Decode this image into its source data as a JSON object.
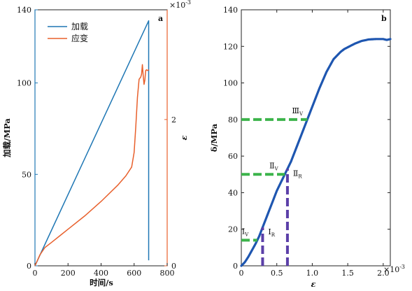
{
  "chart_data": [
    {
      "panel": "a",
      "type": "line",
      "xlabel": "时间/s",
      "ylabel_left": "加载/MPa",
      "ylabel_right": "ε",
      "right_axis_multiplier": "×10^-3",
      "xlim": [
        0,
        800
      ],
      "ylim_left": [
        0,
        140
      ],
      "ylim_right": [
        0,
        3.5
      ],
      "x_ticks": [
        0,
        200,
        400,
        600,
        800
      ],
      "y_ticks_left": [
        0,
        50,
        100,
        140
      ],
      "y_ticks_right": [
        0,
        2
      ],
      "legend": {
        "position": "top-left",
        "entries": [
          "加载",
          "应变"
        ]
      },
      "series": [
        {
          "name": "加载",
          "axis": "left",
          "color": "#1f77b4",
          "x": [
            0,
            688,
            688
          ],
          "y": [
            0,
            134,
            3
          ]
        },
        {
          "name": "应变",
          "axis": "right",
          "color": "#e8602c",
          "x": [
            0,
            30,
            60,
            100,
            150,
            200,
            300,
            400,
            500,
            550,
            585,
            600,
            610,
            620,
            630,
            640,
            645,
            650,
            655,
            660,
            665,
            670,
            675,
            680,
            690
          ],
          "y": [
            0,
            0.15,
            0.25,
            0.32,
            0.41,
            0.5,
            0.68,
            0.88,
            1.1,
            1.23,
            1.35,
            1.55,
            1.9,
            2.3,
            2.55,
            2.58,
            2.62,
            2.75,
            2.6,
            2.48,
            2.54,
            2.67,
            2.68,
            2.67,
            2.68
          ]
        }
      ],
      "annotations": [
        "a"
      ]
    },
    {
      "panel": "b",
      "type": "line",
      "xlabel": "ε",
      "ylabel": "δ/MPa",
      "x_multiplier": "×10^-3",
      "xlim": [
        0,
        2.1
      ],
      "ylim": [
        0,
        140
      ],
      "x_ticks": [
        0,
        0.5,
        1.0,
        1.5,
        2.0
      ],
      "x_tick_labels": [
        "0",
        "0.5",
        "1.0",
        "1.5",
        "2.0"
      ],
      "y_ticks": [
        0,
        20,
        40,
        60,
        80,
        100,
        120,
        140
      ],
      "series": [
        {
          "name": "",
          "color": "#1e56b0",
          "x": [
            0,
            0.05,
            0.1,
            0.15,
            0.2,
            0.25,
            0.3,
            0.35,
            0.4,
            0.5,
            0.6,
            0.65,
            0.7,
            0.8,
            0.9,
            1.0,
            1.1,
            1.2,
            1.3,
            1.4,
            1.45,
            1.5,
            1.6,
            1.7,
            1.8,
            1.9,
            2.0,
            2.05,
            2.1
          ],
          "y": [
            0,
            2,
            5,
            8.5,
            12,
            16,
            21,
            26,
            31,
            41,
            49,
            53,
            57,
            67,
            77,
            87,
            97,
            106,
            113,
            117,
            118.5,
            119.5,
            121.5,
            123,
            123.8,
            124,
            124,
            123.5,
            124
          ]
        }
      ],
      "thresholds": [
        {
          "label": "Ⅰ",
          "sub": "V",
          "y": 14,
          "color": "#3cb44b"
        },
        {
          "label": "Ⅱ",
          "sub": "V",
          "y": 50,
          "color": "#3cb44b"
        },
        {
          "label": "Ⅲ",
          "sub": "V",
          "y": 80,
          "color": "#3cb44b"
        },
        {
          "label": "Ⅰ",
          "sub": "R",
          "x": 0.3,
          "color": "#5b3fa8"
        },
        {
          "label": "Ⅱ",
          "sub": "R",
          "x": 0.65,
          "color": "#5b3fa8"
        }
      ],
      "annotations": [
        "b"
      ]
    }
  ]
}
